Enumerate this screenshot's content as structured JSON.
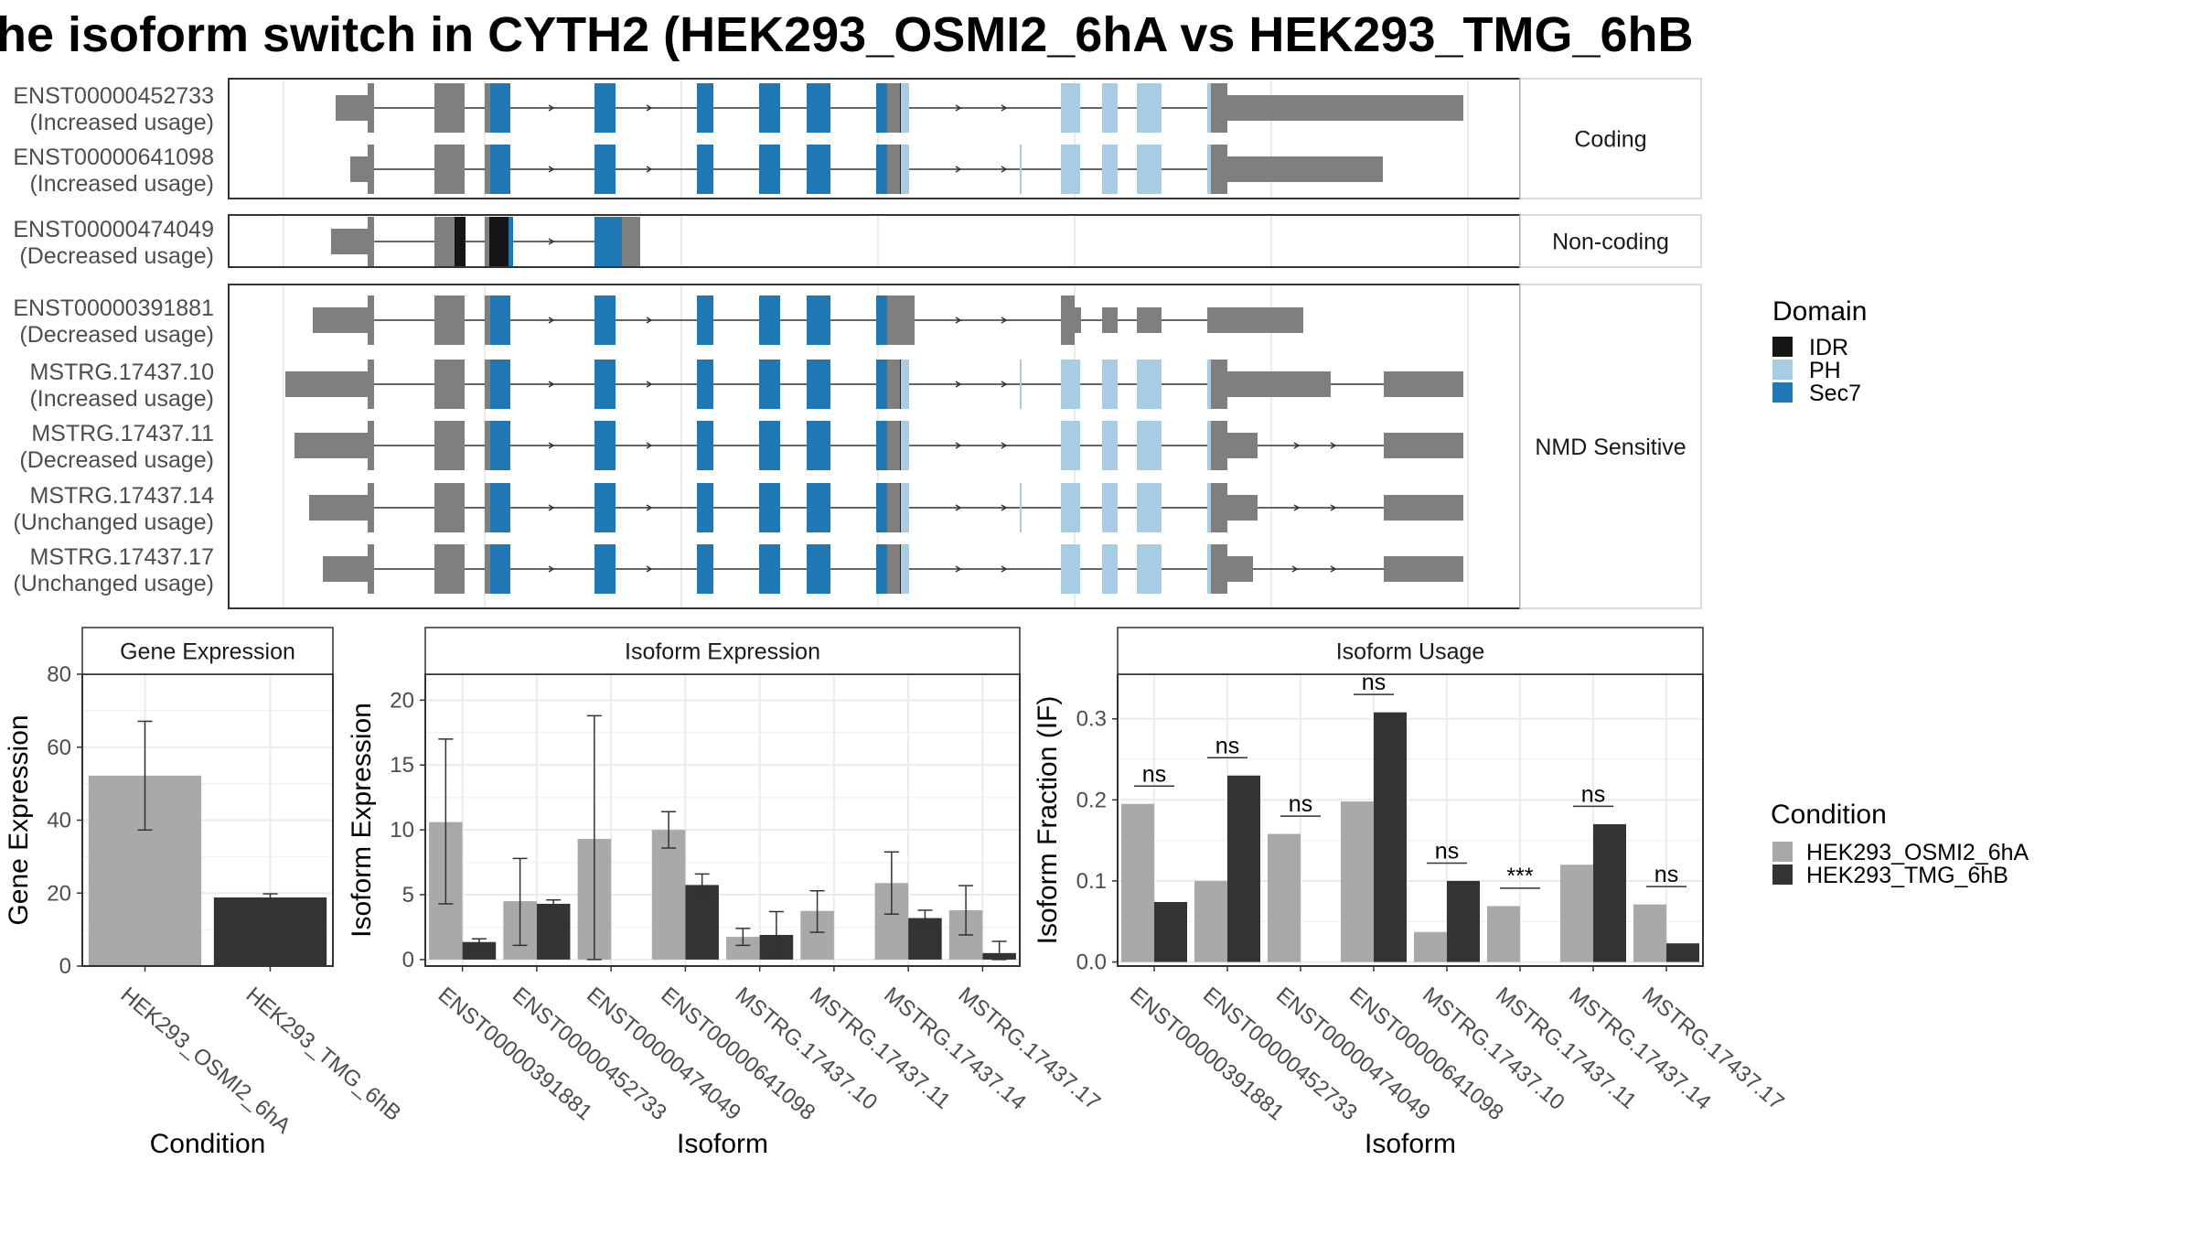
{
  "title": "he isoform switch in CYTH2 (HEK293_OSMI2_6hA vs HEK293_TMG_6hB",
  "colors": {
    "IDR": "#161616",
    "PH": "#a6cde3",
    "Sec7": "#1f78b4",
    "exon": "#7f7f7f",
    "cond1": "#a9a9a9",
    "cond2": "#333333",
    "grid": "#ebebeb",
    "frame": "#333333",
    "strip_text": "#1a1a1a"
  },
  "transcript_panel": {
    "groups": [
      {
        "label": "Coding",
        "transcripts": [
          {
            "id": "ENST00000452733",
            "usage": "(Increased usage)",
            "structure": "coding_long"
          },
          {
            "id": "ENST00000641098",
            "usage": "(Increased usage)",
            "structure": "coding_short"
          }
        ]
      },
      {
        "label": "Non-coding",
        "transcripts": [
          {
            "id": "ENST00000474049",
            "usage": "(Decreased usage)",
            "structure": "noncoding"
          }
        ]
      },
      {
        "label": "NMD Sensitive",
        "transcripts": [
          {
            "id": "ENST00000391881",
            "usage": "(Decreased usage)",
            "structure": "nmd_391881"
          },
          {
            "id": "MSTRG.17437.10",
            "usage": "(Increased usage)",
            "structure": "nmd_10"
          },
          {
            "id": "MSTRG.17437.11",
            "usage": "(Decreased usage)",
            "structure": "nmd_11"
          },
          {
            "id": "MSTRG.17437.14",
            "usage": "(Unchanged usage)",
            "structure": "nmd_14"
          },
          {
            "id": "MSTRG.17437.17",
            "usage": "(Unchanged usage)",
            "structure": "nmd_17"
          }
        ]
      }
    ]
  },
  "legends": {
    "domain": {
      "title": "Domain",
      "items": [
        "IDR",
        "PH",
        "Sec7"
      ]
    },
    "condition": {
      "title": "Condition",
      "items": [
        "HEK293_OSMI2_6hA",
        "HEK293_TMG_6hB"
      ]
    }
  },
  "chart_data": [
    {
      "type": "bar",
      "title": "Gene Expression",
      "xlabel": "Condition",
      "ylabel": "Gene Expression",
      "categories": [
        "HEK293_OSMI2_6hA",
        "HEK293_TMG_6hB"
      ],
      "values": [
        52.2,
        18.8
      ],
      "error": [
        [
          37.3,
          67.1
        ],
        [
          17.9,
          19.8
        ]
      ],
      "ylim": [
        0,
        80
      ],
      "yticks": [
        0,
        20,
        40,
        60,
        80
      ],
      "grid": true
    },
    {
      "type": "bar",
      "title": "Isoform Expression",
      "xlabel": "Isoform",
      "ylabel": "Isoform Expression",
      "categories": [
        "ENST00000391881",
        "ENST00000452733",
        "ENST00000474049",
        "ENST00000641098",
        "MSTRG.17437.10",
        "MSTRG.17437.11",
        "MSTRG.17437.14",
        "MSTRG.17437.17"
      ],
      "series": [
        {
          "name": "HEK293_OSMI2_6hA",
          "values": [
            10.6,
            4.5,
            9.3,
            10.0,
            1.75,
            3.75,
            5.9,
            3.8
          ],
          "error": [
            [
              4.3,
              17.0
            ],
            [
              1.1,
              7.8
            ],
            [
              0,
              18.8
            ],
            [
              8.6,
              11.4
            ],
            [
              1.1,
              2.4
            ],
            [
              2.1,
              5.3
            ],
            [
              3.5,
              8.3
            ],
            [
              1.9,
              5.7
            ]
          ]
        },
        {
          "name": "HEK293_TMG_6hB",
          "values": [
            1.35,
            4.3,
            0,
            5.75,
            1.9,
            0,
            3.2,
            0.5
          ],
          "error": [
            [
              1.1,
              1.6
            ],
            [
              4.0,
              4.6
            ],
            null,
            [
              4.9,
              6.6
            ],
            [
              0.1,
              3.7
            ],
            null,
            [
              2.5,
              3.8
            ],
            [
              0,
              1.4
            ]
          ]
        }
      ],
      "ylim": [
        -0.5,
        22
      ],
      "yticks": [
        0,
        5,
        10,
        15,
        20
      ],
      "grid": true
    },
    {
      "type": "bar",
      "title": "Isoform Usage",
      "xlabel": "Isoform",
      "ylabel": "Isoform Fraction (IF)",
      "categories": [
        "ENST00000391881",
        "ENST00000452733",
        "ENST00000474049",
        "ENST00000641098",
        "MSTRG.17437.10",
        "MSTRG.17437.11",
        "MSTRG.17437.14",
        "MSTRG.17437.17"
      ],
      "series": [
        {
          "name": "HEK293_OSMI2_6hA",
          "values": [
            0.195,
            0.1,
            0.158,
            0.198,
            0.037,
            0.069,
            0.12,
            0.071
          ]
        },
        {
          "name": "HEK293_TMG_6hB",
          "values": [
            0.074,
            0.23,
            0.0,
            0.308,
            0.1,
            0.0,
            0.17,
            0.023
          ]
        }
      ],
      "significance": [
        "ns",
        "ns",
        "ns",
        "ns",
        "ns",
        "***",
        "ns",
        "ns"
      ],
      "ylim": [
        -0.005,
        0.355
      ],
      "yticks": [
        0.0,
        0.1,
        0.2,
        0.3
      ],
      "ytick_labels": [
        "0.0",
        "0.1",
        "0.2",
        "0.3"
      ],
      "grid": true
    }
  ]
}
